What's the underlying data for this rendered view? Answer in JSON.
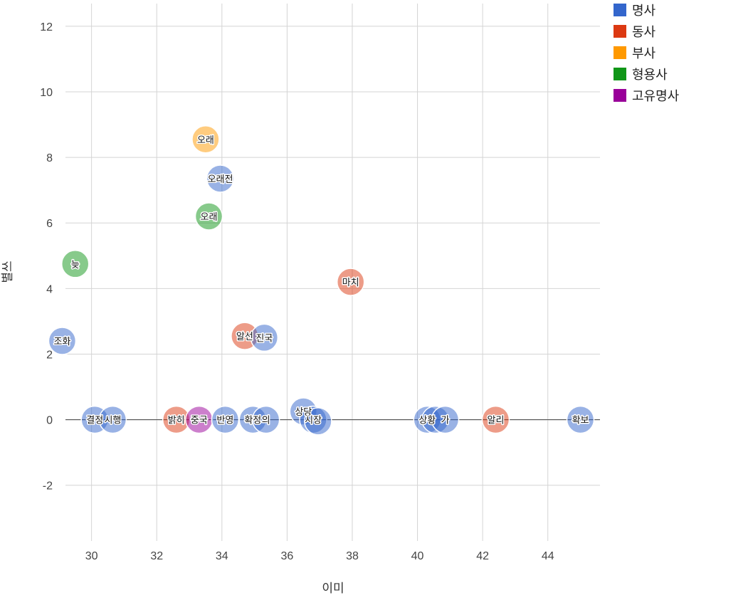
{
  "chart_data": {
    "type": "scatter",
    "title": "",
    "xlabel": "이미",
    "ylabel": "별쓰",
    "xlim": [
      29.2,
      45.6
    ],
    "ylim": [
      -3.7,
      12.8
    ],
    "x_ticks": [
      30,
      32,
      34,
      36,
      38,
      40,
      42,
      44
    ],
    "y_ticks": [
      -2,
      0,
      2,
      4,
      6,
      8,
      10,
      12
    ],
    "grid": true,
    "legend_position": "top-right",
    "categories": [
      {
        "name": "명사",
        "color": "#3366cc"
      },
      {
        "name": "동사",
        "color": "#dc3912"
      },
      {
        "name": "부사",
        "color": "#ff9900"
      },
      {
        "name": "형용사",
        "color": "#109618"
      },
      {
        "name": "고유명사",
        "color": "#990099"
      }
    ],
    "points": [
      {
        "label": "조화",
        "x": 29.1,
        "y": 2.4,
        "category": "명사"
      },
      {
        "label": "늦",
        "x": 29.5,
        "y": 4.75,
        "category": "형용사"
      },
      {
        "label": "결정",
        "x": 30.1,
        "y": 0,
        "category": "명사"
      },
      {
        "label": "시행",
        "x": 30.65,
        "y": 0,
        "category": "명사"
      },
      {
        "label": "밝히",
        "x": 32.6,
        "y": 0,
        "category": "동사"
      },
      {
        "label": "중국",
        "x": 33.3,
        "y": 0,
        "category": "고유명사"
      },
      {
        "label": "오래",
        "x": 33.5,
        "y": 8.55,
        "category": "부사"
      },
      {
        "label": "오래",
        "x": 33.6,
        "y": 6.2,
        "category": "형용사"
      },
      {
        "label": "오래전",
        "x": 33.95,
        "y": 7.35,
        "category": "명사"
      },
      {
        "label": "반영",
        "x": 34.1,
        "y": 0,
        "category": "명사"
      },
      {
        "label": "알선",
        "x": 34.7,
        "y": 2.55,
        "category": "동사"
      },
      {
        "label": "진국",
        "x": 35.3,
        "y": 2.5,
        "category": "명사"
      },
      {
        "label": "확정",
        "x": 34.95,
        "y": 0,
        "category": "명사"
      },
      {
        "label": "의",
        "x": 35.35,
        "y": 0,
        "category": "명사"
      },
      {
        "label": "상당",
        "x": 36.5,
        "y": 0.25,
        "category": "명사"
      },
      {
        "label": "시장",
        "x": 36.8,
        "y": 0,
        "category": "명사"
      },
      {
        "label": "",
        "x": 36.95,
        "y": -0.05,
        "category": "명사"
      },
      {
        "label": "마치",
        "x": 37.95,
        "y": 4.2,
        "category": "동사"
      },
      {
        "label": "상황",
        "x": 40.3,
        "y": 0,
        "category": "명사"
      },
      {
        "label": "",
        "x": 40.55,
        "y": 0,
        "category": "명사"
      },
      {
        "label": "가",
        "x": 40.85,
        "y": 0,
        "category": "명사"
      },
      {
        "label": "알리",
        "x": 42.4,
        "y": 0,
        "category": "동사"
      },
      {
        "label": "확보",
        "x": 45.0,
        "y": 0,
        "category": "명사"
      }
    ]
  }
}
